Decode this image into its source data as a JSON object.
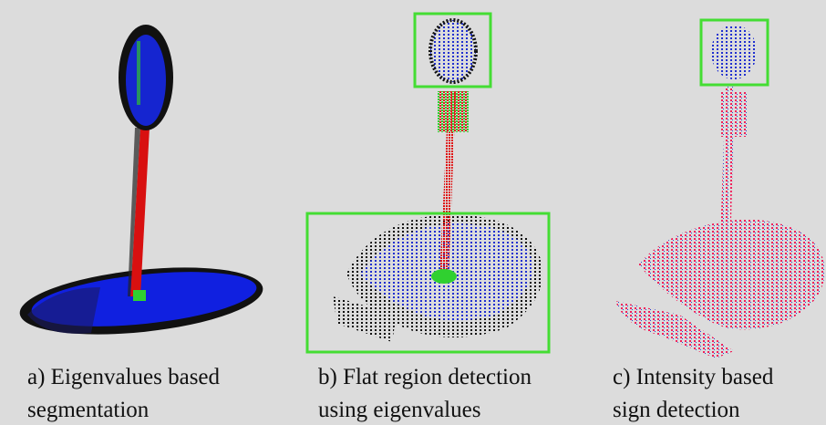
{
  "panels": [
    {
      "caption_lines": [
        "a) Eigenvalues based",
        "segmentation"
      ]
    },
    {
      "caption_lines": [
        "b) Flat region detection",
        "using eigenvalues"
      ]
    },
    {
      "caption_lines": [
        "c) Intensity based",
        "sign detection"
      ]
    }
  ]
}
